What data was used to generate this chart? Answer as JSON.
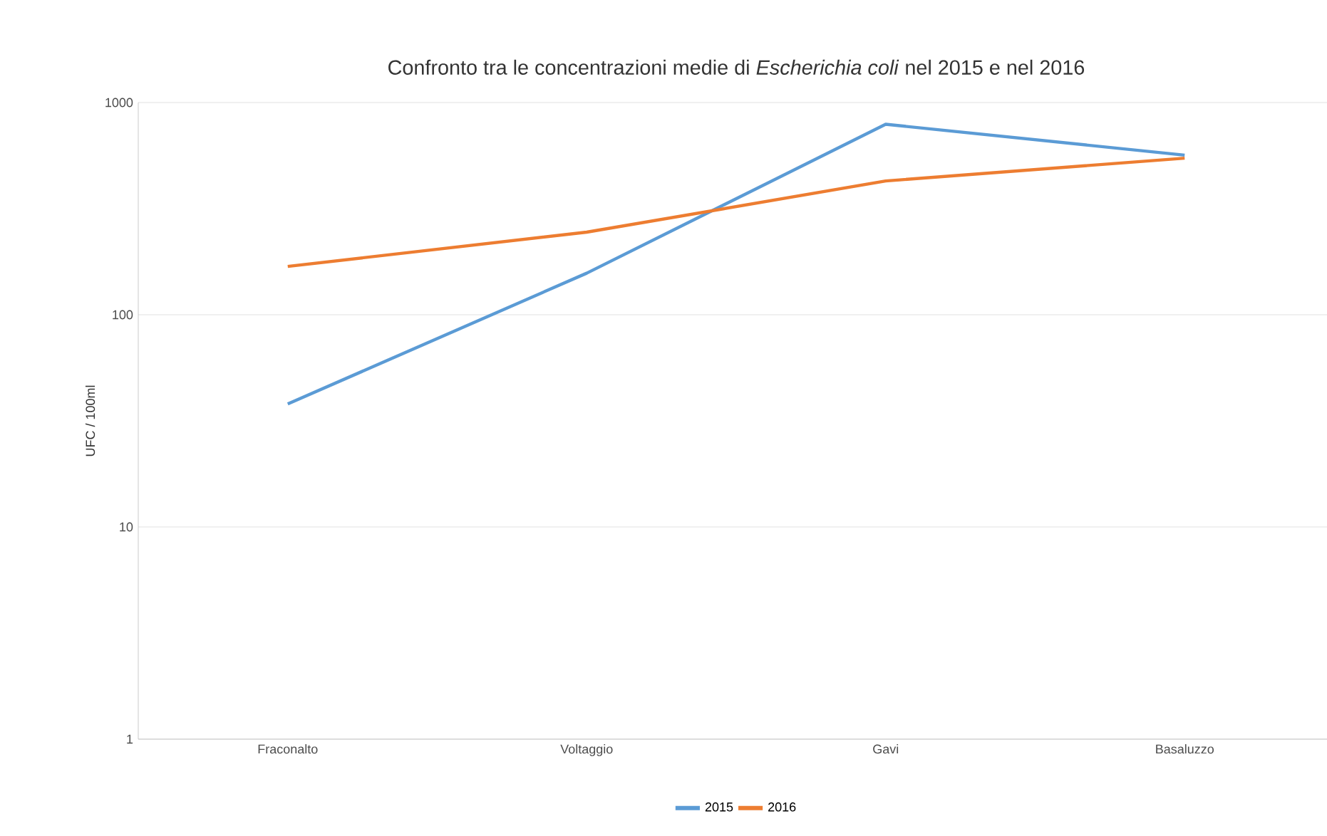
{
  "chart_data": {
    "type": "line",
    "title": "Confronto tra le concentrazioni medie di *Escherichia coli* nel 2015 e nel 2016",
    "ylabel": "UFC / 100ml",
    "categories": [
      "Fraconalto",
      "Voltaggio",
      "Gavi",
      "Basaluzzo"
    ],
    "series": [
      {
        "name": "2015",
        "color": "#5b9bd5",
        "values": [
          38,
          157,
          790,
          565
        ]
      },
      {
        "name": "2016",
        "color": "#ed7d31",
        "values": [
          169,
          245,
          427,
          547
        ]
      }
    ],
    "log": true,
    "ylim": [
      1,
      1000
    ],
    "yticks": [
      1,
      10,
      100,
      1000
    ],
    "grid": "y",
    "legend": "bottom",
    "marker": "none",
    "line_style": "solid"
  }
}
